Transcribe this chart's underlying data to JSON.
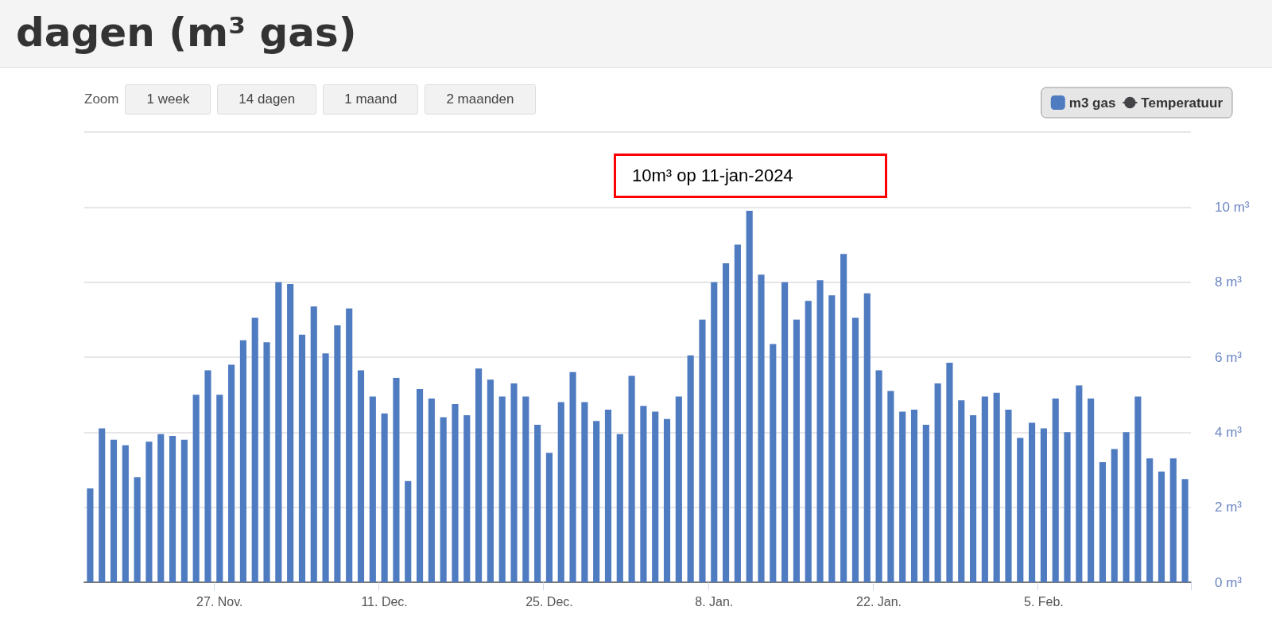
{
  "chart_data": {
    "type": "bar",
    "title": "dagen (m³ gas)",
    "categories": [
      null,
      null,
      null,
      null,
      null,
      null,
      null,
      null,
      null,
      null,
      null,
      "27. Nov.",
      null,
      null,
      null,
      null,
      null,
      null,
      null,
      null,
      null,
      null,
      null,
      null,
      null,
      "11. Dec.",
      null,
      null,
      null,
      null,
      null,
      null,
      null,
      null,
      null,
      null,
      null,
      null,
      null,
      "25. Dec.",
      null,
      null,
      null,
      null,
      null,
      null,
      null,
      null,
      null,
      null,
      null,
      null,
      null,
      "8. Jan.",
      null,
      null,
      null,
      null,
      null,
      null,
      null,
      null,
      null,
      null,
      null,
      null,
      null,
      "22. Jan.",
      null,
      null,
      null,
      null,
      null,
      null,
      null,
      null,
      null,
      null,
      null,
      null,
      null,
      "5. Feb.",
      null,
      null,
      null,
      null,
      null,
      null,
      null,
      null,
      null,
      null,
      null,
      null
    ],
    "series": [
      {
        "name": "m3 gas",
        "color": "#4f7bc1",
        "values": [
          2.5,
          4.1,
          3.8,
          3.65,
          2.8,
          3.75,
          3.95,
          3.9,
          3.8,
          5.0,
          5.65,
          5.0,
          5.8,
          6.45,
          7.05,
          6.4,
          8.0,
          7.95,
          6.6,
          7.35,
          6.1,
          6.85,
          7.3,
          5.65,
          4.95,
          4.5,
          5.45,
          2.7,
          5.15,
          4.9,
          4.4,
          4.75,
          4.45,
          5.7,
          5.4,
          4.95,
          5.3,
          4.95,
          4.2,
          3.45,
          4.8,
          5.6,
          4.8,
          4.3,
          4.6,
          3.95,
          5.5,
          4.7,
          4.55,
          4.35,
          4.95,
          6.05,
          7.0,
          8.0,
          8.5,
          9.0,
          9.9,
          8.2,
          6.35,
          8.0,
          7.0,
          7.5,
          8.05,
          7.65,
          8.75,
          7.05,
          7.7,
          5.65,
          5.1,
          4.55,
          4.6,
          4.2,
          5.3,
          5.85,
          4.85,
          4.45,
          4.95,
          5.05,
          4.6,
          3.85,
          4.25,
          4.1,
          4.9,
          4.0,
          5.25,
          4.9,
          3.2,
          3.55,
          4.0,
          4.95,
          3.3,
          2.95,
          3.3,
          2.75
        ]
      },
      {
        "name": "Temperatuur",
        "type": "line",
        "color": "#434348",
        "values": [
          null,
          null,
          null,
          null,
          null,
          null,
          null,
          null,
          null,
          null,
          null,
          null,
          null,
          null,
          null,
          null,
          null,
          null,
          null,
          null,
          null,
          null,
          null,
          null,
          null,
          null,
          null,
          null,
          null,
          null,
          null,
          null,
          null,
          null,
          null,
          null,
          null,
          null,
          null,
          null,
          null,
          null,
          null,
          null,
          null,
          null,
          null,
          null,
          null,
          null,
          null,
          null,
          null,
          null,
          null,
          null,
          null,
          null,
          null,
          null,
          null,
          null,
          null,
          null,
          null,
          null,
          null,
          null,
          null,
          null,
          null,
          null,
          null,
          null,
          null,
          null,
          null,
          null,
          null,
          null,
          null,
          null,
          null,
          null,
          null,
          null,
          null,
          null,
          null,
          null,
          null,
          null,
          null,
          null
        ]
      }
    ],
    "ylim": [
      0,
      12
    ],
    "yticks": [
      {
        "value": 0,
        "label": "0 m³"
      },
      {
        "value": 2,
        "label": "2 m³"
      },
      {
        "value": 4,
        "label": "4 m³"
      },
      {
        "value": 6,
        "label": "6 m³"
      },
      {
        "value": 8,
        "label": "8 m³"
      },
      {
        "value": 10,
        "label": "10 m³"
      },
      {
        "value": 12,
        "label": null
      }
    ],
    "grid": "y",
    "legend": "top right",
    "annotations": [
      "Zoom",
      "1 week",
      "14 dagen",
      "1 maand",
      "2 maanden",
      "10m³ op 11-jan-2024"
    ]
  }
}
